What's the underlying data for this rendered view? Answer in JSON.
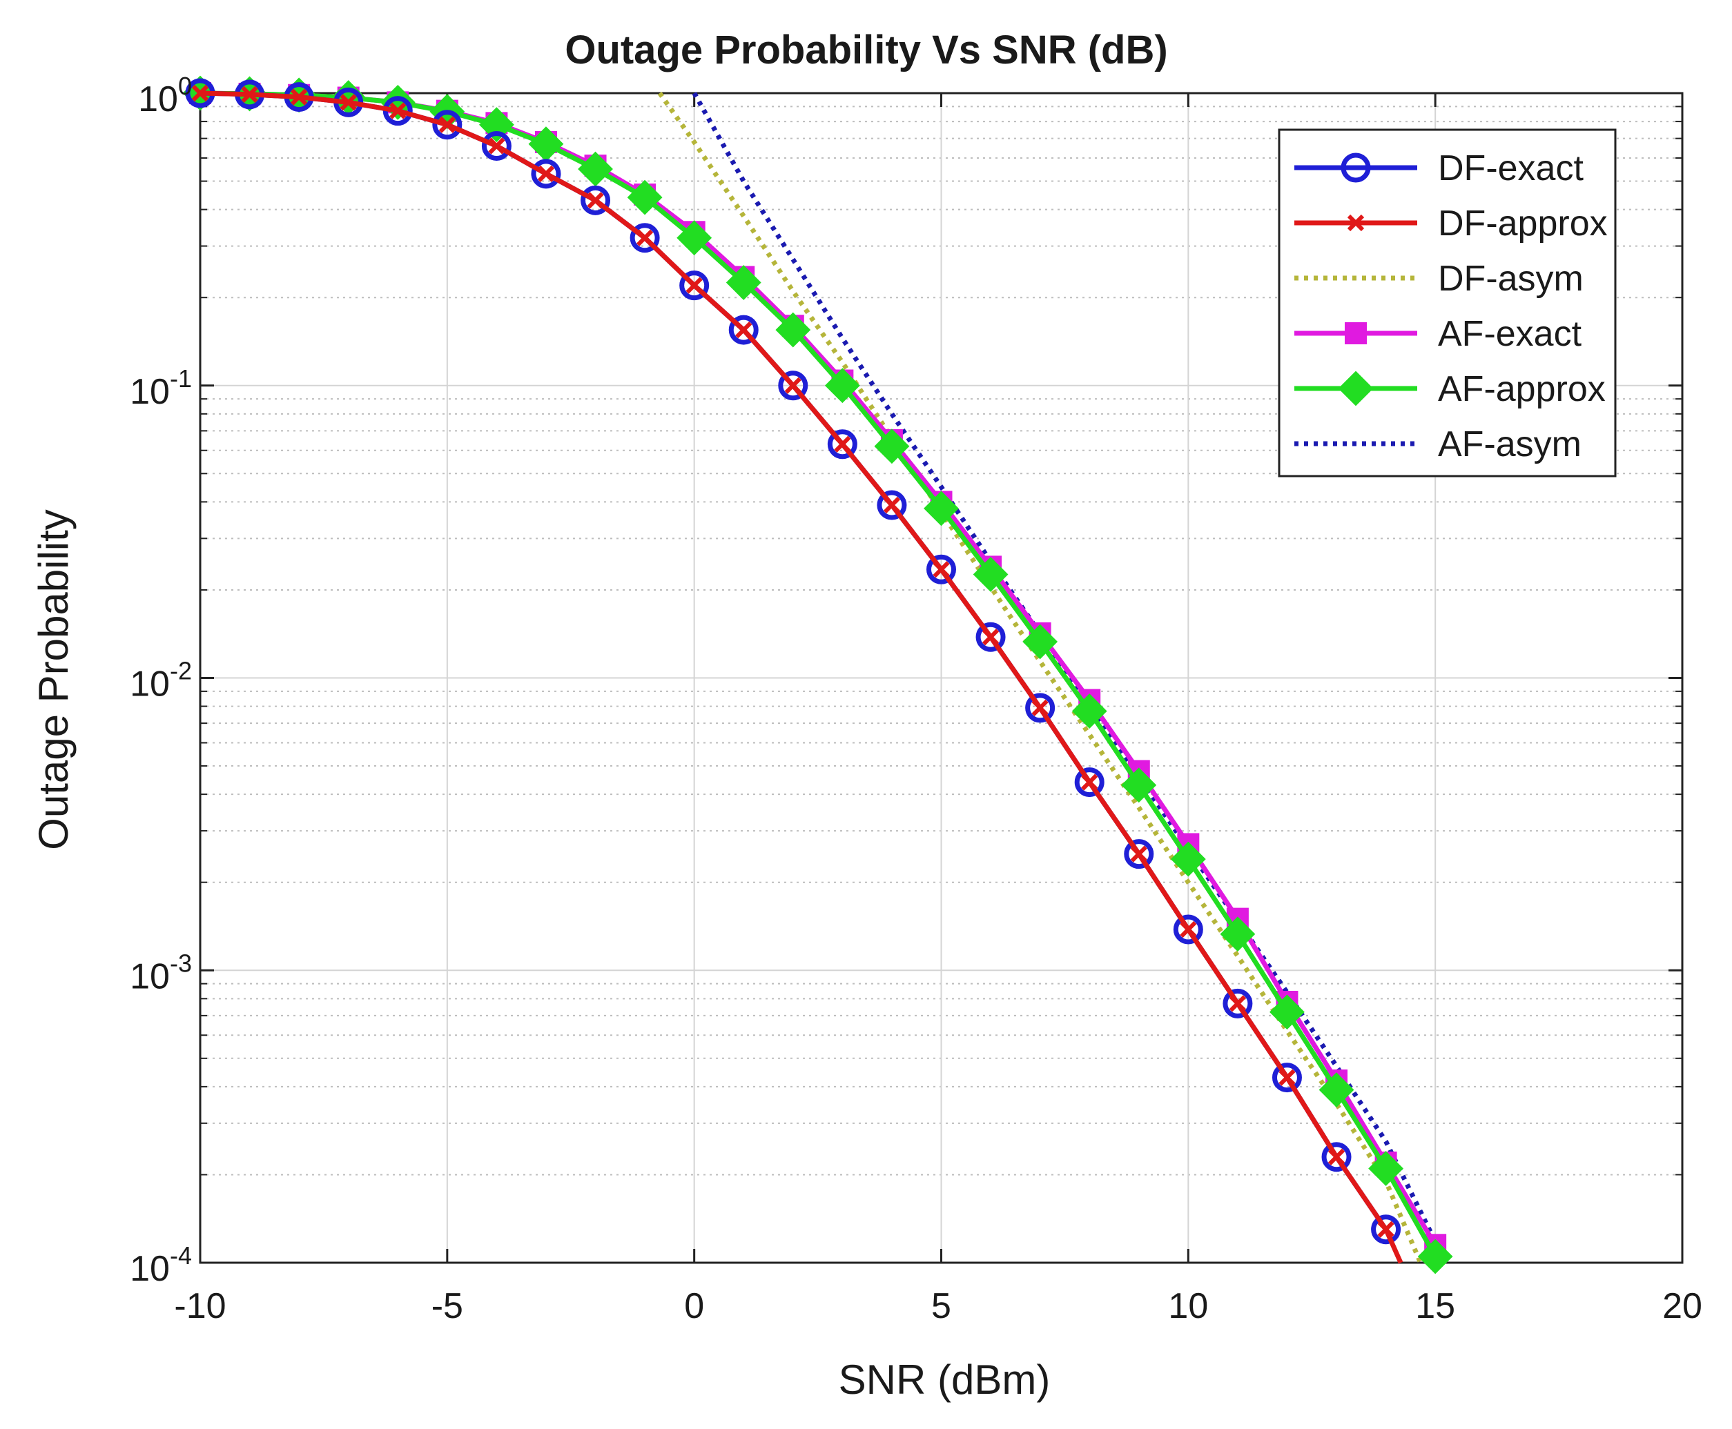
{
  "chart_data": {
    "type": "line",
    "title": "Outage Probability Vs SNR (dB)",
    "xlabel": "SNR (dBm)",
    "ylabel": "Outage Probability",
    "xlim": [
      -10,
      20
    ],
    "ylim": [
      0.0001,
      1
    ],
    "yscale": "log",
    "grid": true,
    "minor_grid": true,
    "legend_position": "top-right",
    "x_ticks": [
      {
        "value": -10,
        "label": "-10"
      },
      {
        "value": -5,
        "label": "-5"
      },
      {
        "value": 0,
        "label": "0"
      },
      {
        "value": 5,
        "label": "5"
      },
      {
        "value": 10,
        "label": "10"
      },
      {
        "value": 15,
        "label": "15"
      },
      {
        "value": 20,
        "label": "20"
      }
    ],
    "y_ticks": [
      {
        "value": 1,
        "base": "10",
        "exp": "0"
      },
      {
        "value": 0.1,
        "base": "10",
        "exp": "-1"
      },
      {
        "value": 0.01,
        "base": "10",
        "exp": "-2"
      },
      {
        "value": 0.001,
        "base": "10",
        "exp": "-3"
      },
      {
        "value": 0.0001,
        "base": "10",
        "exp": "-4"
      }
    ],
    "series": [
      {
        "name": "DF-exact",
        "color": "#1f1fd6",
        "line_style": "solid",
        "marker": "circle",
        "x": [
          -10,
          -9,
          -8,
          -7,
          -6,
          -5,
          -4,
          -3,
          -2,
          -1,
          0,
          1,
          2,
          3,
          4,
          5,
          6,
          7,
          8,
          9,
          10,
          11,
          12,
          13,
          14
        ],
        "y": [
          1.0,
          0.99,
          0.97,
          0.93,
          0.87,
          0.78,
          0.66,
          0.53,
          0.43,
          0.32,
          0.22,
          0.155,
          0.1,
          0.063,
          0.039,
          0.0235,
          0.0138,
          0.0079,
          0.0044,
          0.0025,
          0.00138,
          0.00077,
          0.00043,
          0.00023,
          0.00013
        ]
      },
      {
        "name": "DF-approx",
        "color": "#e01818",
        "line_style": "solid",
        "marker": "x",
        "x": [
          -10,
          -9,
          -8,
          -7,
          -6,
          -5,
          -4,
          -3,
          -2,
          -1,
          0,
          1,
          2,
          3,
          4,
          5,
          6,
          7,
          8,
          9,
          10,
          11,
          12,
          13,
          14,
          14.3
        ],
        "y": [
          1.0,
          0.99,
          0.97,
          0.93,
          0.87,
          0.78,
          0.66,
          0.53,
          0.43,
          0.32,
          0.22,
          0.155,
          0.1,
          0.063,
          0.039,
          0.0235,
          0.0138,
          0.0079,
          0.0044,
          0.0025,
          0.00138,
          0.00077,
          0.00043,
          0.00023,
          0.00013,
          0.0001
        ]
      },
      {
        "name": "DF-asym",
        "color": "#b5b53a",
        "line_style": "dotted",
        "marker": "none",
        "x": [
          -0.7,
          0,
          1,
          2,
          3,
          4,
          5,
          6,
          7,
          8,
          9,
          10,
          11,
          12,
          13,
          14,
          14.7
        ],
        "y": [
          1.0,
          0.68,
          0.38,
          0.21,
          0.12,
          0.066,
          0.037,
          0.0205,
          0.0114,
          0.0064,
          0.0036,
          0.002,
          0.00112,
          0.00062,
          0.00035,
          0.00019,
          0.0001
        ]
      },
      {
        "name": "AF-exact",
        "color": "#e01ae0",
        "line_style": "solid",
        "marker": "square",
        "x": [
          -10,
          -9,
          -8,
          -7,
          -6,
          -5,
          -4,
          -3,
          -2,
          -1,
          0,
          1,
          2,
          3,
          4,
          5,
          6,
          7,
          8,
          9,
          10,
          11,
          12,
          13,
          14,
          15
        ],
        "y": [
          1.0,
          0.995,
          0.985,
          0.965,
          0.93,
          0.87,
          0.79,
          0.68,
          0.565,
          0.45,
          0.335,
          0.235,
          0.16,
          0.104,
          0.065,
          0.04,
          0.024,
          0.0142,
          0.0084,
          0.0048,
          0.0027,
          0.0015,
          0.00078,
          0.00042,
          0.00022,
          0.000115
        ]
      },
      {
        "name": "AF-approx",
        "color": "#22dd22",
        "line_style": "solid",
        "marker": "diamond",
        "x": [
          -10,
          -9,
          -8,
          -7,
          -6,
          -5,
          -4,
          -3,
          -2,
          -1,
          0,
          1,
          2,
          3,
          4,
          5,
          6,
          7,
          8,
          9,
          10,
          11,
          12,
          13,
          14,
          15
        ],
        "y": [
          1.0,
          0.995,
          0.985,
          0.965,
          0.93,
          0.865,
          0.78,
          0.67,
          0.55,
          0.44,
          0.32,
          0.225,
          0.155,
          0.1,
          0.062,
          0.038,
          0.0226,
          0.0133,
          0.0077,
          0.0043,
          0.0024,
          0.00133,
          0.00072,
          0.00039,
          0.00021,
          0.000105
        ]
      },
      {
        "name": "AF-asym",
        "color": "#1a1ab0",
        "line_style": "dotted",
        "marker": "none",
        "x": [
          0,
          1,
          2,
          3,
          4,
          5,
          6,
          7,
          8,
          9,
          10,
          11,
          12,
          13,
          14,
          15
        ],
        "y": [
          1.0,
          0.5,
          0.27,
          0.145,
          0.08,
          0.045,
          0.025,
          0.0142,
          0.0081,
          0.0046,
          0.0026,
          0.00148,
          0.00084,
          0.00047,
          0.00026,
          0.000118
        ]
      }
    ]
  }
}
